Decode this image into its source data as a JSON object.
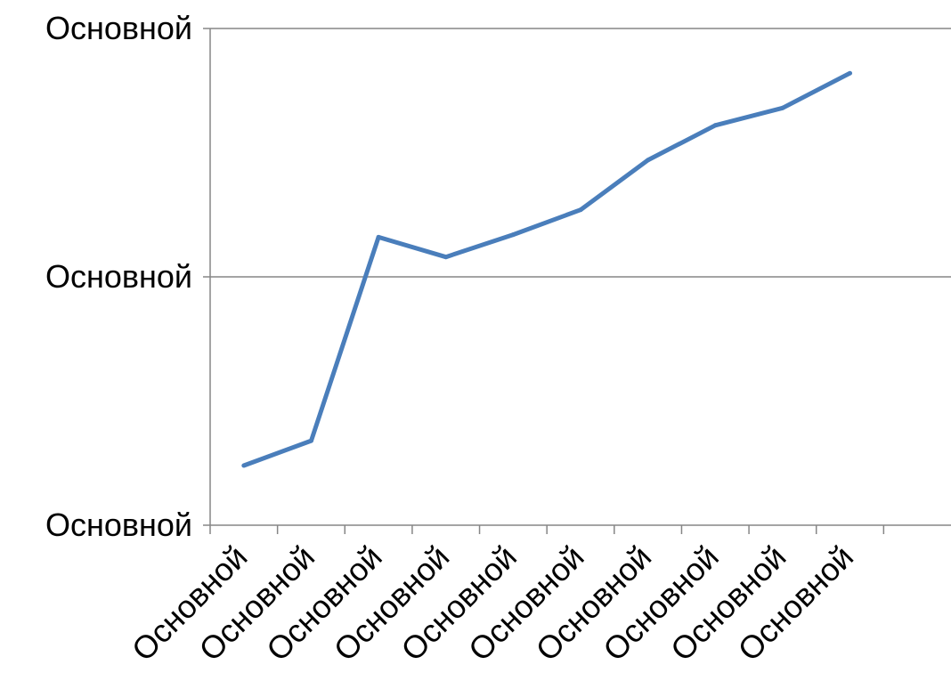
{
  "chart_data": {
    "type": "line",
    "title": "",
    "xlabel": "",
    "ylabel": "",
    "categories": [
      "Основной",
      "Основной",
      "Основной",
      "Основной",
      "Основной",
      "Основной",
      "Основной",
      "Основной",
      "Основной",
      "Основной"
    ],
    "x_axis_slots": 11,
    "y_ticks": [
      "Основной",
      "Основной",
      "Основной"
    ],
    "ylim": [
      0,
      100
    ],
    "gridlines": "horizontal",
    "legend": "none",
    "series": [
      {
        "color": "#4a7ebb",
        "values": [
          12.0,
          17.0,
          58.0,
          54.0,
          58.5,
          63.5,
          73.5,
          80.5,
          84.0,
          91.0
        ]
      }
    ]
  }
}
